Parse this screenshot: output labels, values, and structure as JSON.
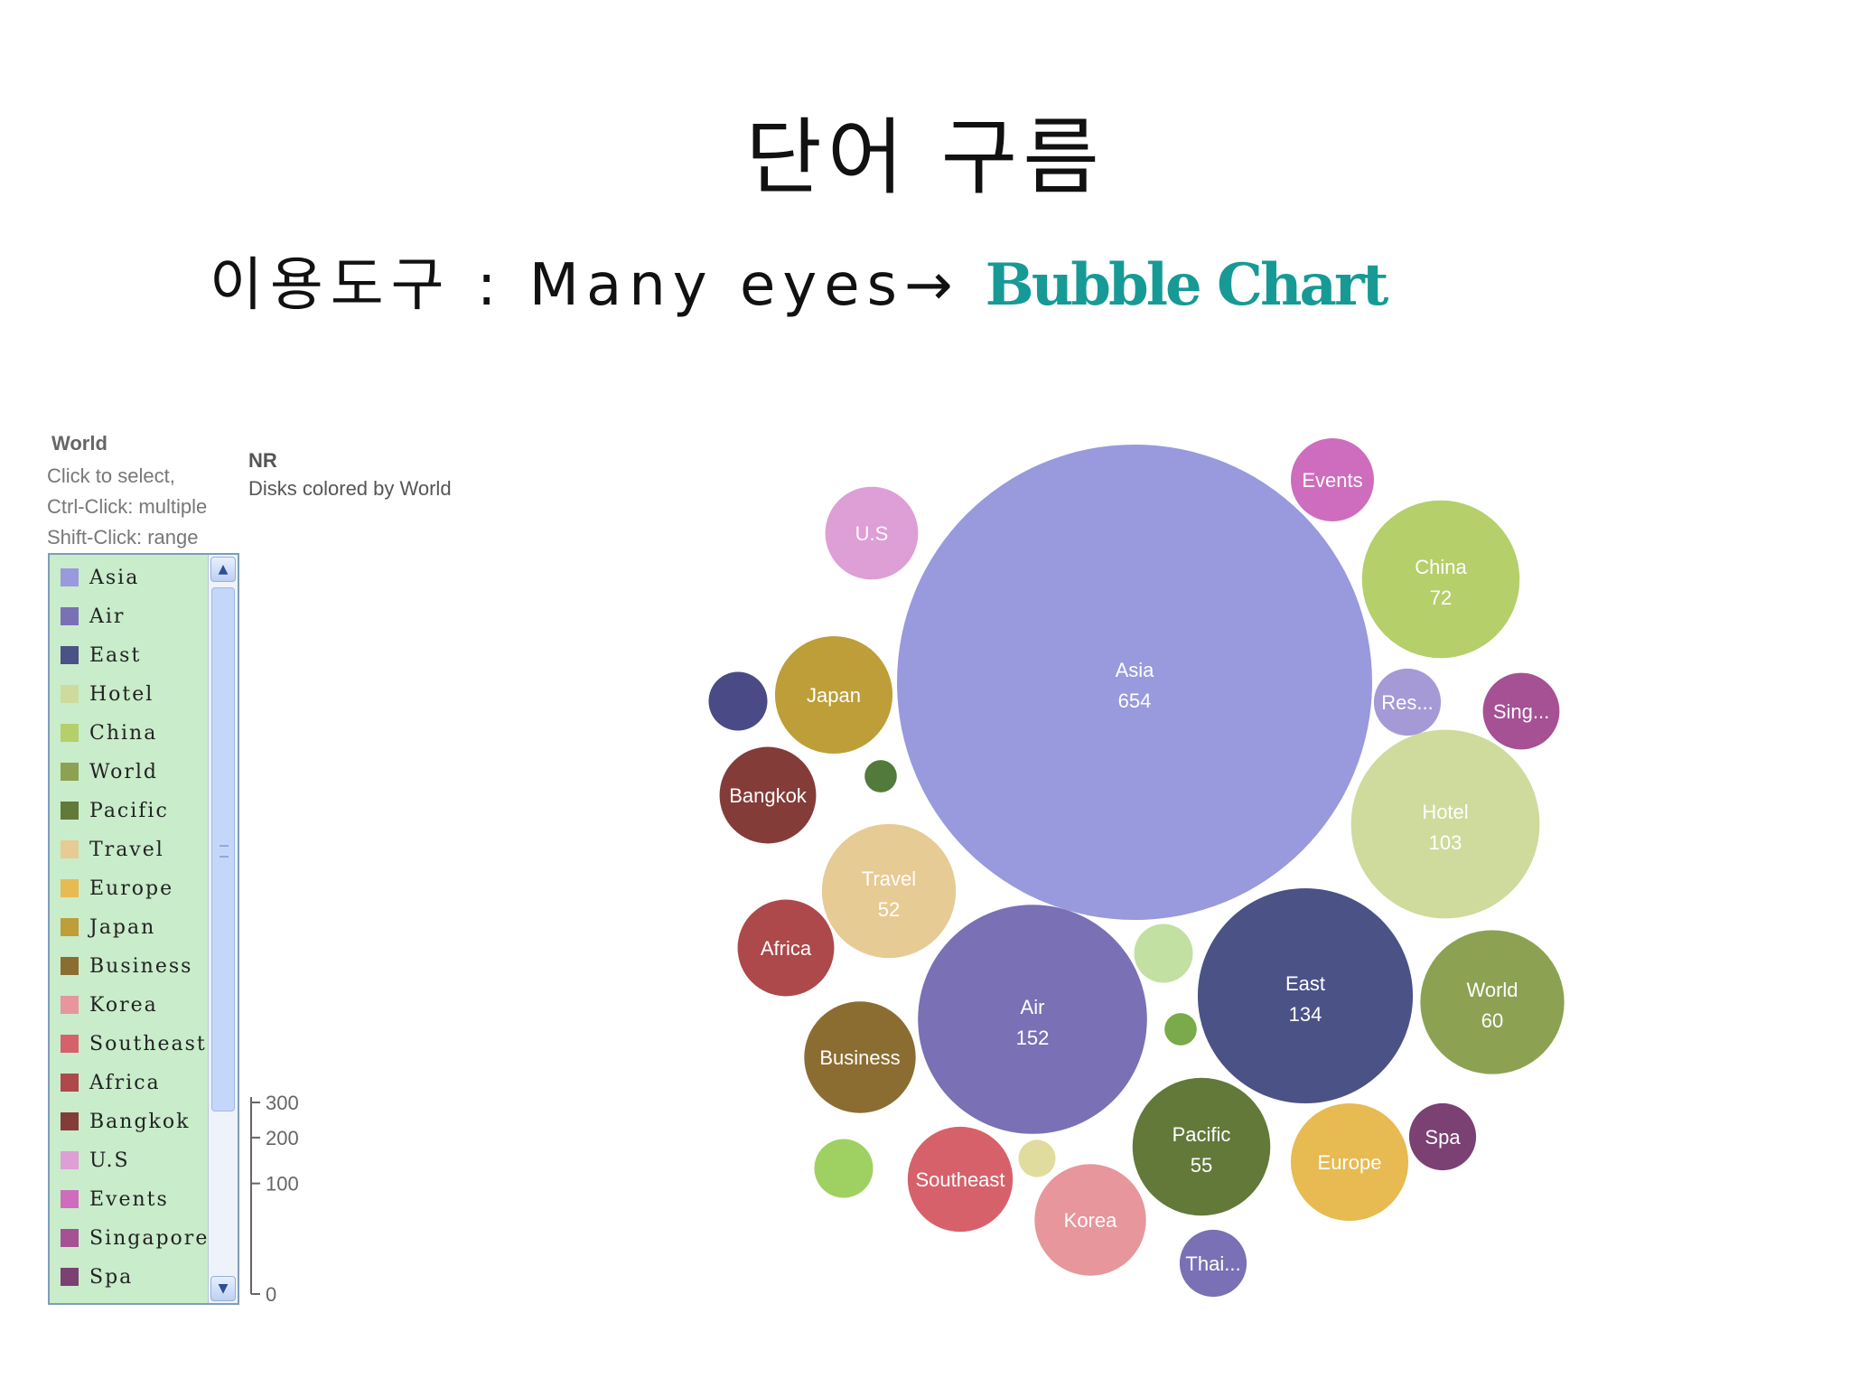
{
  "slide": {
    "title": "단어 구름",
    "subtitle_tool": "이용도구 : Many eyes→",
    "subtitle_brand": "Bubble Chart",
    "brand_color": "#179a96"
  },
  "legend": {
    "title": "World",
    "help": [
      "Click to select,",
      "Ctrl-Click: multiple",
      "Shift-Click: range"
    ],
    "items": [
      {
        "label": "Asia",
        "color": "#9999dd"
      },
      {
        "label": "Air",
        "color": "#7a70b5"
      },
      {
        "label": "East",
        "color": "#4a5286"
      },
      {
        "label": "Hotel",
        "color": "#cedb9c"
      },
      {
        "label": "China",
        "color": "#b5cf6b"
      },
      {
        "label": "World",
        "color": "#8ca252"
      },
      {
        "label": "Pacific",
        "color": "#637939"
      },
      {
        "label": "Travel",
        "color": "#e7cb94"
      },
      {
        "label": "Europe",
        "color": "#e7ba52"
      },
      {
        "label": "Japan",
        "color": "#bd9e39"
      },
      {
        "label": "Business",
        "color": "#8c6d31"
      },
      {
        "label": "Korea",
        "color": "#e7969c"
      },
      {
        "label": "Southeast",
        "color": "#d6616b"
      },
      {
        "label": "Africa",
        "color": "#ad494a"
      },
      {
        "label": "Bangkok",
        "color": "#843c39"
      },
      {
        "label": "U.S",
        "color": "#de9ed6"
      },
      {
        "label": "Events",
        "color": "#ce6dbd"
      },
      {
        "label": "Singapore",
        "color": "#a55194"
      },
      {
        "label": "Spa",
        "color": "#7b4173"
      }
    ]
  },
  "size_legend": {
    "title": "NR",
    "subtitle": "Disks colored by World",
    "ticks": [
      300,
      200,
      100,
      0
    ]
  },
  "chart_data": {
    "type": "bubble",
    "size_metric": "NR",
    "color_by": "World",
    "bubbles": [
      {
        "label": "Asia",
        "value": 654,
        "value_shown": true,
        "color": "#9999dd"
      },
      {
        "label": "Air",
        "value": 152,
        "value_shown": true,
        "color": "#7a70b5"
      },
      {
        "label": "East",
        "value": 134,
        "value_shown": true,
        "color": "#4a5286"
      },
      {
        "label": "Hotel",
        "value": 103,
        "value_shown": true,
        "color": "#cedb9c"
      },
      {
        "label": "China",
        "value": 72,
        "value_shown": true,
        "color": "#b5cf6b"
      },
      {
        "label": "World",
        "value": 60,
        "value_shown": true,
        "color": "#8ca252"
      },
      {
        "label": "Pacific",
        "value": 55,
        "value_shown": true,
        "color": "#637939"
      },
      {
        "label": "Travel",
        "value": 52,
        "value_shown": true,
        "color": "#e7cb94"
      },
      {
        "label": "Europe",
        "value": 40,
        "value_shown": false,
        "color": "#e7ba52"
      },
      {
        "label": "Japan",
        "value": 40,
        "value_shown": false,
        "color": "#bd9e39"
      },
      {
        "label": "Business",
        "value": 36,
        "value_shown": false,
        "color": "#8c6d31"
      },
      {
        "label": "Korea",
        "value": 36,
        "value_shown": false,
        "color": "#e7969c"
      },
      {
        "label": "Southeast",
        "value": 32,
        "value_shown": false,
        "color": "#d6616b"
      },
      {
        "label": "Africa",
        "value": 27,
        "value_shown": false,
        "color": "#ad494a"
      },
      {
        "label": "Bangkok",
        "value": 27,
        "value_shown": false,
        "color": "#843c39"
      },
      {
        "label": "U.S",
        "value": 25,
        "value_shown": false,
        "color": "#de9ed6"
      },
      {
        "label": "Events",
        "value": 20,
        "value_shown": false,
        "color": "#ce6dbd"
      },
      {
        "label": "Sing...",
        "value": 17,
        "value_shown": false,
        "color": "#a55194"
      },
      {
        "label": "Res...",
        "value": 13,
        "value_shown": false,
        "color": "#a59ad6"
      },
      {
        "label": "Spa",
        "value": 13,
        "value_shown": false,
        "color": "#7b4173"
      },
      {
        "label": "Thai...",
        "value": 13,
        "value_shown": false,
        "color": "#7a70b5"
      },
      {
        "label": "",
        "value": 10,
        "value_shown": false,
        "color": "#4a4a86"
      },
      {
        "label": "",
        "value": 10,
        "value_shown": false,
        "color": "#9fd062"
      },
      {
        "label": "",
        "value": 10,
        "value_shown": false,
        "color": "#c2e0a2"
      },
      {
        "label": "",
        "value": 4,
        "value_shown": false,
        "color": "#e0dc9e"
      },
      {
        "label": "",
        "value": 3,
        "value_shown": false,
        "color": "#527a3a"
      },
      {
        "label": "",
        "value": 3,
        "value_shown": false,
        "color": "#7aaa4a"
      }
    ]
  }
}
